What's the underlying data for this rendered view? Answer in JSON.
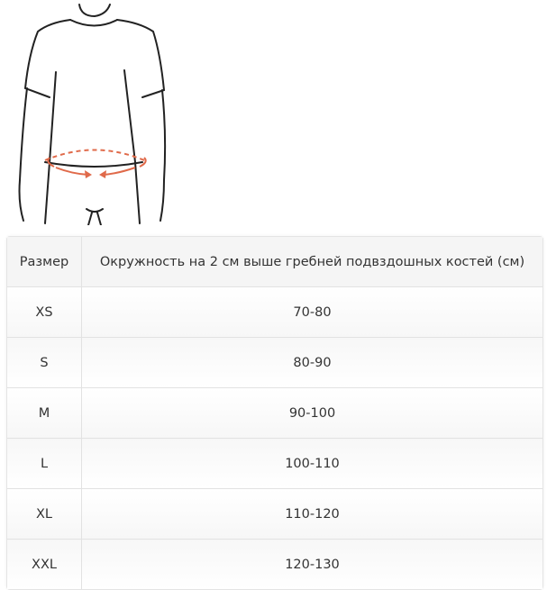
{
  "image": {
    "icon": "waist-measurement-figure",
    "accent_color": "#e06a4a"
  },
  "table": {
    "headers": [
      "Размер",
      "Окружность на 2 см выше гребней подвздошных костей (см)"
    ],
    "rows": [
      {
        "size": "XS",
        "range": "70-80"
      },
      {
        "size": "S",
        "range": "80-90"
      },
      {
        "size": "M",
        "range": "90-100"
      },
      {
        "size": "L",
        "range": "100-110"
      },
      {
        "size": "XL",
        "range": "110-120"
      },
      {
        "size": "XXL",
        "range": "120-130"
      }
    ]
  }
}
